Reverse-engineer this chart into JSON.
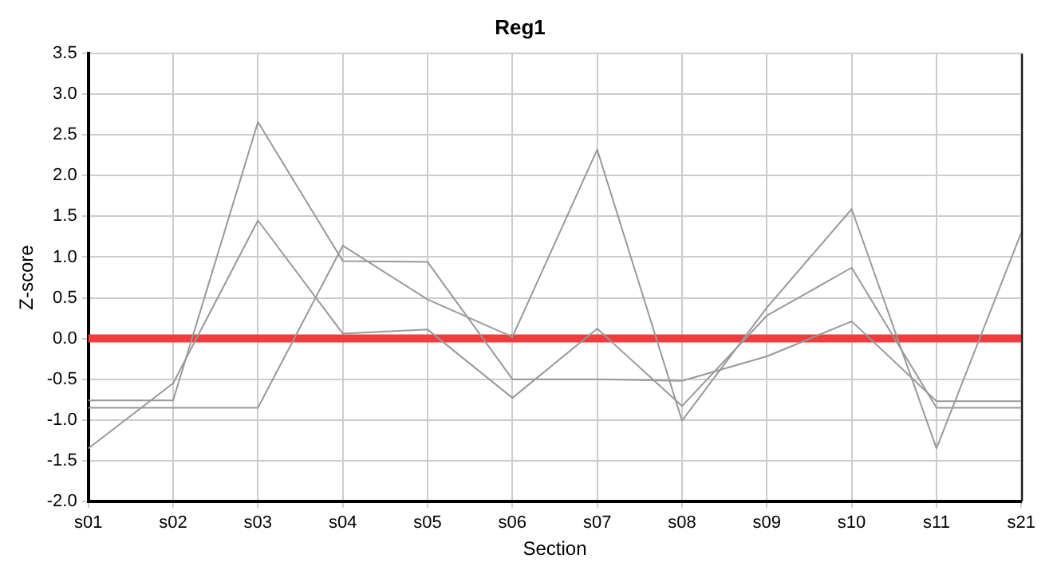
{
  "chart_data": {
    "type": "line",
    "title": "Reg1",
    "xlabel": "Section",
    "ylabel": "Z-score",
    "categories": [
      "s01",
      "s02",
      "s03",
      "s04",
      "s05",
      "s06",
      "s07",
      "s08",
      "s09",
      "s10",
      "s11",
      "s21"
    ],
    "series": [
      {
        "color": "#999999",
        "values": [
          -0.76,
          -0.76,
          2.66,
          0.95,
          0.94,
          -0.5,
          -0.5,
          -0.52,
          -0.22,
          0.21,
          -0.77,
          -0.77
        ]
      },
      {
        "color": "#999999",
        "values": [
          -0.85,
          -0.85,
          -0.85,
          1.14,
          0.48,
          0.02,
          2.32,
          -1.01,
          0.38,
          1.59,
          -1.35,
          1.3
        ]
      },
      {
        "color": "#999999",
        "values": [
          -1.35,
          -0.55,
          1.45,
          0.06,
          0.11,
          -0.73,
          0.12,
          -0.83,
          0.28,
          0.87,
          -0.85,
          -0.85
        ]
      }
    ],
    "ylim": [
      -2,
      3.5
    ],
    "yticks": [
      {
        "value": -2,
        "label": "-2.0"
      },
      {
        "value": -1.5,
        "label": "-1.5"
      },
      {
        "value": -1,
        "label": "-1.0"
      },
      {
        "value": -0.5,
        "label": "-0.5"
      },
      {
        "value": 0,
        "label": "0.0"
      },
      {
        "value": 0.5,
        "label": "0.5"
      },
      {
        "value": 1,
        "label": "1.0"
      },
      {
        "value": 1.5,
        "label": "1.5"
      },
      {
        "value": 2,
        "label": "2.0"
      },
      {
        "value": 2.5,
        "label": "2.5"
      },
      {
        "value": 3,
        "label": "3.0"
      },
      {
        "value": 3.5,
        "label": "3.5"
      }
    ],
    "ref_lines": [
      {
        "axis": "y",
        "value": 0,
        "color": "#f03c3c"
      }
    ],
    "grid": true,
    "legend": false,
    "marker": "none",
    "line_style": "solid"
  }
}
